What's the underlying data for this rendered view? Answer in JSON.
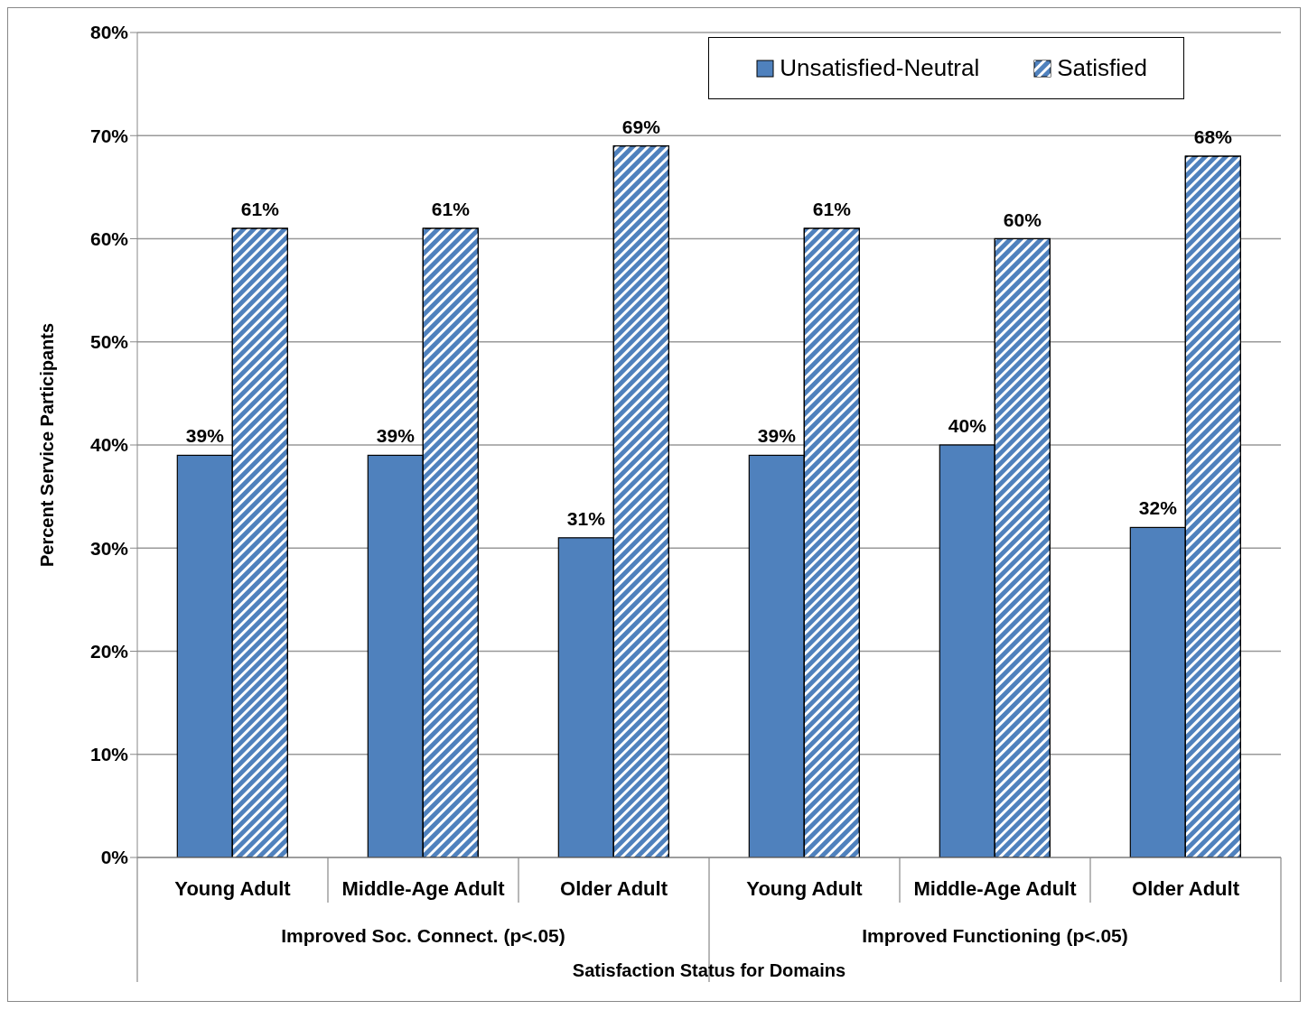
{
  "chart_data": {
    "type": "bar",
    "xlabel": "Satisfaction Status for Domains",
    "ylabel": "Percent Service Participants",
    "categories": [
      "Young Adult",
      "Middle-Age Adult",
      "Older Adult",
      "Young Adult",
      "Middle-Age Adult",
      "Older Adult"
    ],
    "annotations": [
      "Improved Soc. Connect. (p<.05)",
      "Improved Functioning (p<.05)"
    ],
    "series": [
      {
        "name": "Unsatisfied-Neutral",
        "color": "#4f81bd",
        "values": [
          39,
          39,
          31,
          39,
          40,
          32
        ],
        "value_labels": [
          "39%",
          "39%",
          "31%",
          "39%",
          "40%",
          "32%"
        ]
      },
      {
        "name": "Satisfied",
        "color": "#4f81bd",
        "values": [
          61,
          61,
          69,
          61,
          60,
          68
        ],
        "value_labels": [
          "61%",
          "61%",
          "69%",
          "61%",
          "60%",
          "68%"
        ]
      }
    ],
    "ylim": [
      0,
      80
    ],
    "yticks": [
      {
        "value": 0,
        "label": "0%"
      },
      {
        "value": 10,
        "label": "10%"
      },
      {
        "value": 20,
        "label": "20%"
      },
      {
        "value": 30,
        "label": "30%"
      },
      {
        "value": 40,
        "label": "40%"
      },
      {
        "value": 50,
        "label": "50%"
      },
      {
        "value": 60,
        "label": "60%"
      },
      {
        "value": 70,
        "label": "70%"
      },
      {
        "value": 80,
        "label": "80%"
      }
    ],
    "grid": "y",
    "legend": "top right"
  }
}
